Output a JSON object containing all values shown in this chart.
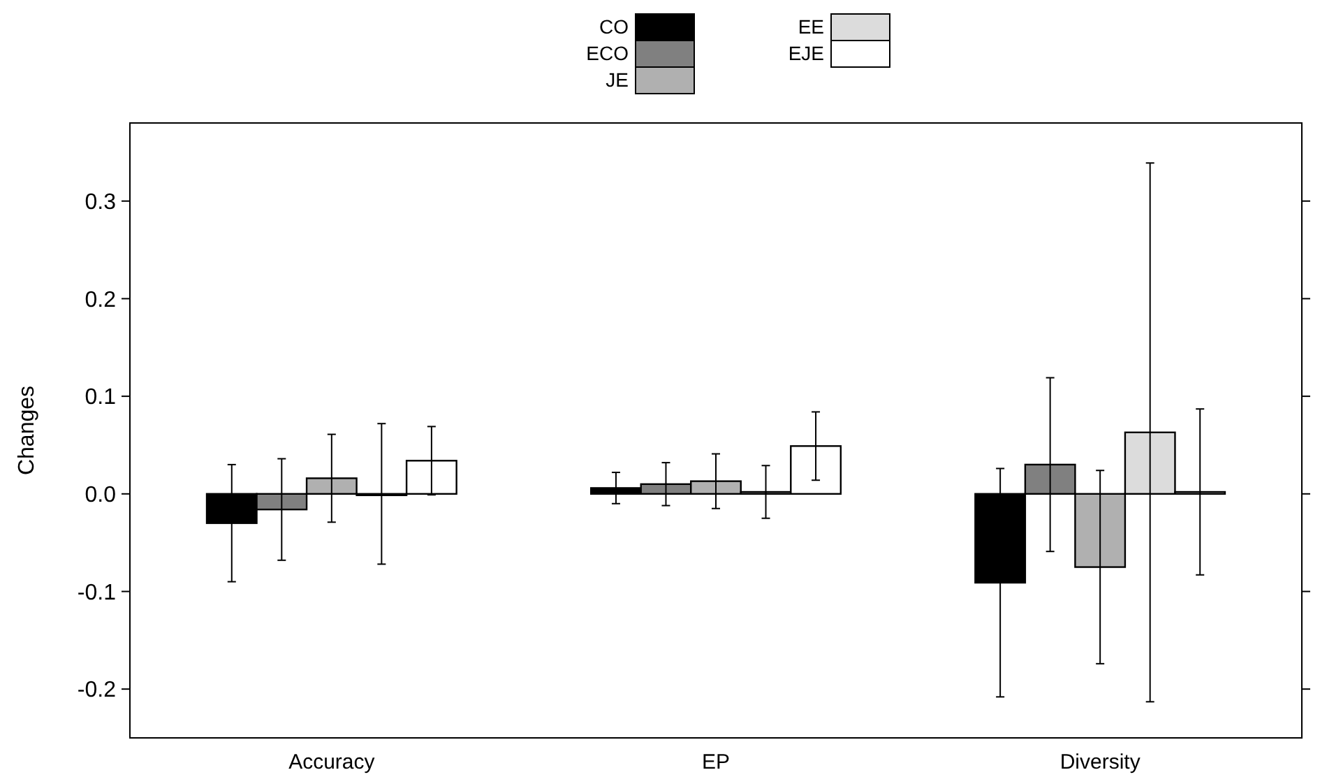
{
  "chart_data": {
    "type": "bar",
    "ylabel": "Changes",
    "categories": [
      "Accuracy",
      "EP",
      "Diversity"
    ],
    "series": [
      {
        "name": "CO",
        "color": "#000000",
        "values": [
          -0.03,
          0.006,
          -0.091
        ],
        "errors": [
          0.06,
          0.016,
          0.117
        ]
      },
      {
        "name": "ECO",
        "color": "#808080",
        "values": [
          -0.016,
          0.01,
          0.03
        ],
        "errors": [
          0.052,
          0.022,
          0.089
        ]
      },
      {
        "name": "JE",
        "color": "#b0b0b0",
        "values": [
          0.016,
          0.013,
          -0.075
        ],
        "errors": [
          0.045,
          0.028,
          0.099
        ]
      },
      {
        "name": "EE",
        "color": "#dcdcdc",
        "values": [
          0.0,
          0.002,
          0.063
        ],
        "errors": [
          0.072,
          0.027,
          0.276
        ]
      },
      {
        "name": "EJE",
        "color": "#ffffff",
        "values": [
          0.034,
          0.049,
          0.002
        ],
        "errors": [
          0.035,
          0.035,
          0.085
        ]
      }
    ],
    "ylim": [
      -0.25,
      0.38
    ],
    "yticks": [
      {
        "value": -0.2,
        "label": "-0.2"
      },
      {
        "value": -0.1,
        "label": "-0.1"
      },
      {
        "value": 0,
        "label": "0.0"
      },
      {
        "value": 0.1,
        "label": "0.1"
      },
      {
        "value": 0.2,
        "label": "0.2"
      },
      {
        "value": 0.3,
        "label": "0.3"
      }
    ],
    "grid": false,
    "legend": "top"
  }
}
